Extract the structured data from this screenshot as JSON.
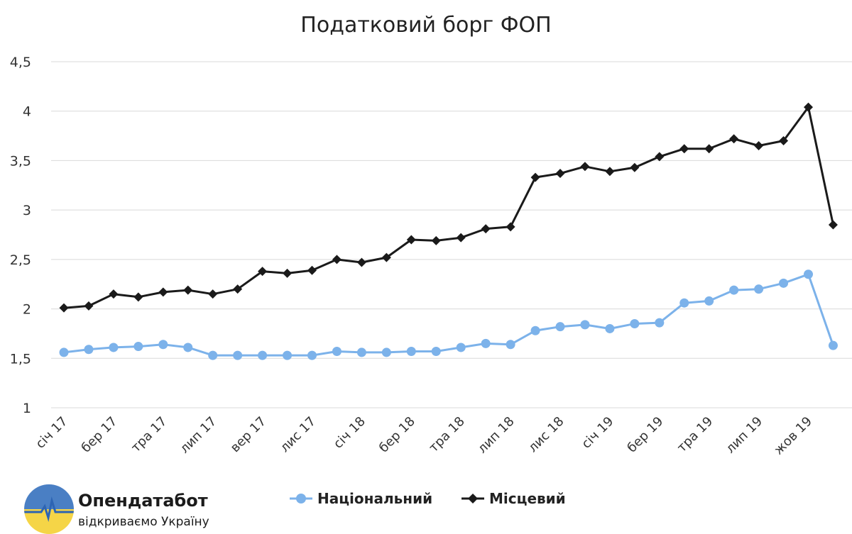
{
  "chart_data": {
    "type": "line",
    "title": "Податковий борг ФОП",
    "ylim": [
      1,
      4.5
    ],
    "y_ticks": [
      "1",
      "1,5",
      "2",
      "2,5",
      "3",
      "3,5",
      "4",
      "4,5"
    ],
    "y_tick_values": [
      1,
      1.5,
      2,
      2.5,
      3,
      3.5,
      4,
      4.5
    ],
    "x_tick_labels": [
      "січ 17",
      "бер 17",
      "тра 17",
      "лип 17",
      "вер 17",
      "лис 17",
      "січ 18",
      "бер 18",
      "тра 18",
      "лип 18",
      "лис 18",
      "січ 19",
      "бер 19",
      "тра 19",
      "лип 19",
      "жов 19"
    ],
    "x_tick_indices": [
      0,
      2,
      4,
      6,
      8,
      10,
      12,
      14,
      16,
      18,
      20,
      22,
      24,
      26,
      28,
      30
    ],
    "grid": true,
    "legend_position": "bottom",
    "series": [
      {
        "name": "Національний",
        "color": "#7cb2ea",
        "marker": "circle",
        "values": [
          1.56,
          1.59,
          1.61,
          1.62,
          1.64,
          1.61,
          1.53,
          1.53,
          1.53,
          1.53,
          1.53,
          1.57,
          1.56,
          1.56,
          1.57,
          1.57,
          1.61,
          1.65,
          1.64,
          1.78,
          1.82,
          1.84,
          1.8,
          1.85,
          1.86,
          2.06,
          2.08,
          2.19,
          2.2,
          2.26,
          2.35,
          1.63
        ]
      },
      {
        "name": "Місцевий",
        "color": "#1a1a1a",
        "marker": "diamond",
        "values": [
          2.01,
          2.03,
          2.15,
          2.12,
          2.17,
          2.19,
          2.15,
          2.2,
          2.38,
          2.36,
          2.39,
          2.5,
          2.47,
          2.52,
          2.7,
          2.69,
          2.72,
          2.81,
          2.83,
          3.33,
          3.37,
          3.44,
          3.39,
          3.43,
          3.54,
          3.62,
          3.62,
          3.72,
          3.65,
          3.7,
          4.04,
          2.85
        ]
      }
    ]
  },
  "branding": {
    "name": "Опендатабот",
    "tagline": "відкриваємо Україну",
    "logo_colors": {
      "sky": "#4a7fc4",
      "field": "#f5d547",
      "line": "#2d64b3"
    }
  }
}
